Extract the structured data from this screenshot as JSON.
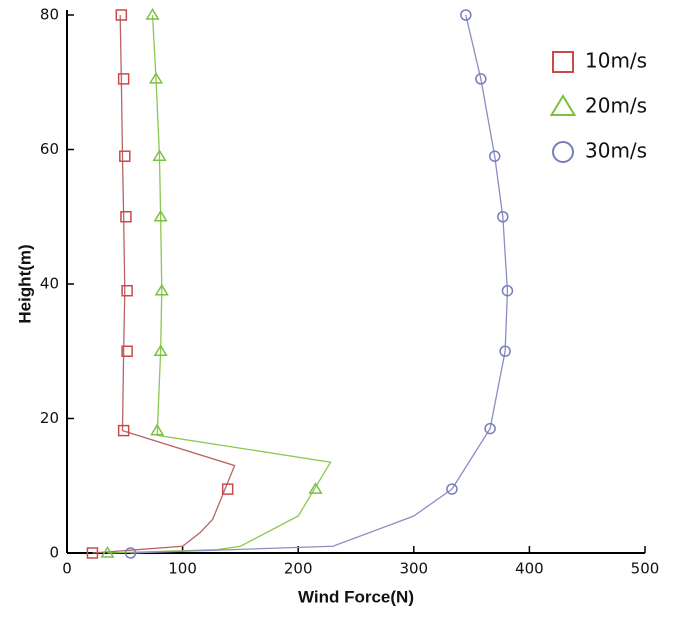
{
  "chart_data": {
    "type": "line",
    "xlabel": "Wind Force(N)",
    "ylabel": "Height(m)",
    "xlim": [
      0,
      500
    ],
    "ylim": [
      0,
      80
    ],
    "xticks": [
      0,
      100,
      200,
      300,
      400,
      500
    ],
    "yticks": [
      0,
      20,
      40,
      60,
      80
    ],
    "legend": "upper right",
    "series": [
      {
        "name": "10m/s",
        "color": "#b86464",
        "marker": "square",
        "marker_color": "#c84a4a",
        "x": [
          22,
          100,
          115,
          126,
          145,
          48,
          49,
          50,
          49,
          48,
          47,
          46
        ],
        "values": [
          0,
          1,
          3,
          5,
          13,
          18.2,
          30,
          39,
          50,
          59,
          70.5,
          80
        ],
        "marker_x": [
          22,
          139,
          49,
          52,
          52,
          51,
          50,
          49,
          47
        ],
        "marker_values": [
          0,
          9.5,
          18.2,
          30,
          39,
          50,
          59,
          70.5,
          80
        ]
      },
      {
        "name": "20m/s",
        "color": "#8cc850",
        "marker": "triangle",
        "marker_color": "#7cc040",
        "x": [
          35,
          130,
          150,
          200,
          228,
          78,
          81,
          82,
          81,
          80,
          77,
          74
        ],
        "values": [
          0,
          0.5,
          1,
          5.5,
          13.5,
          17.5,
          30,
          39,
          50,
          59,
          70.5,
          80
        ],
        "marker_x": [
          35,
          215,
          78,
          81,
          82,
          81,
          80,
          77,
          74
        ],
        "marker_values": [
          0,
          9.5,
          18.2,
          30,
          39,
          50,
          59,
          70.5,
          80
        ]
      },
      {
        "name": "30m/s",
        "color": "#8a8ec4",
        "marker": "circle",
        "marker_color": "#7a7eb8",
        "x": [
          55,
          230,
          300,
          333,
          366,
          379,
          381,
          377,
          370,
          358,
          345
        ],
        "values": [
          0,
          1,
          5.5,
          9.5,
          18.5,
          30,
          39,
          50,
          59,
          70.5,
          80
        ],
        "marker_x": [
          55,
          333,
          366,
          379,
          381,
          377,
          370,
          358,
          345
        ],
        "marker_values": [
          0,
          9.5,
          18.5,
          30,
          39,
          50,
          59,
          70.5,
          80
        ]
      }
    ]
  }
}
